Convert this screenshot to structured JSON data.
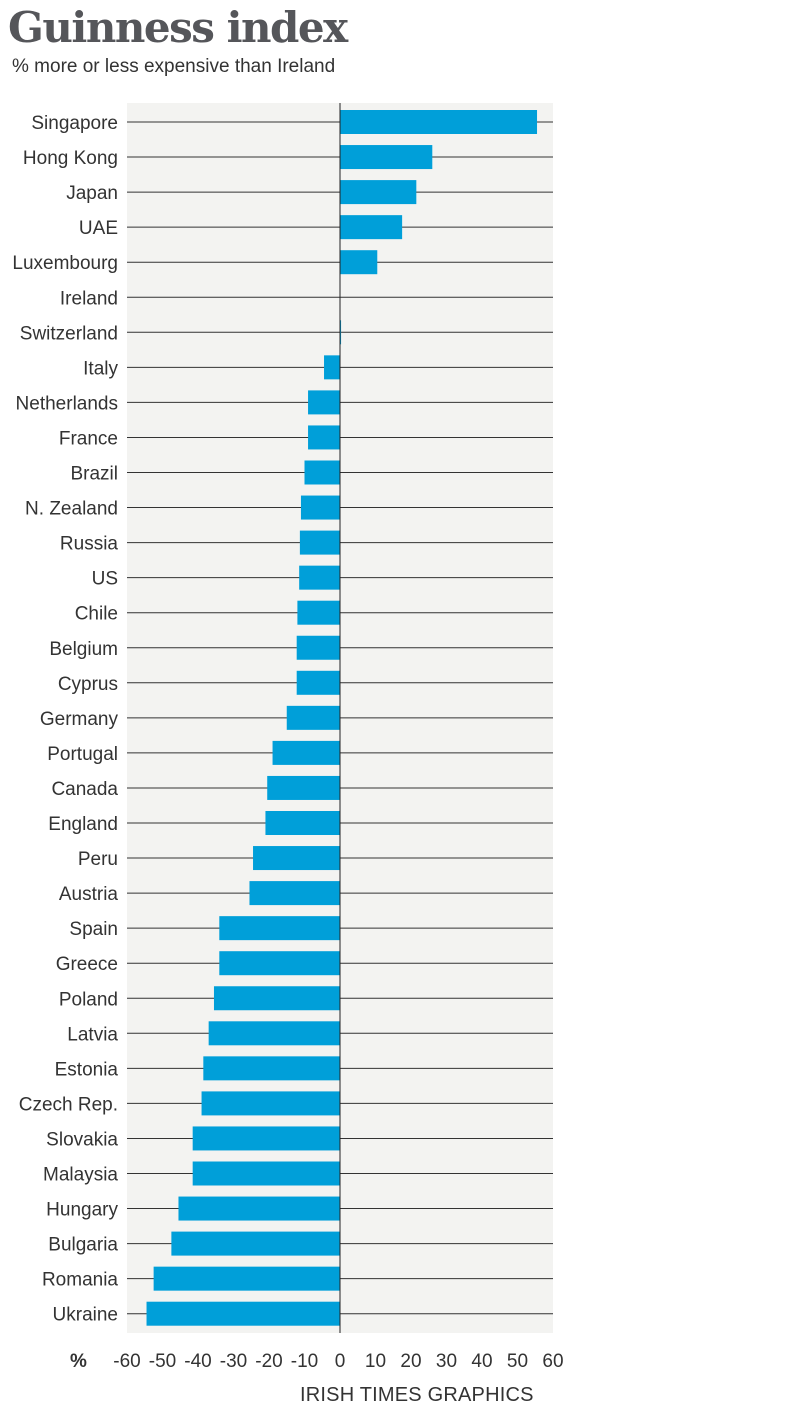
{
  "chart_data": {
    "type": "bar",
    "orientation": "horizontal",
    "title": "Guinness index",
    "subtitle": "% more or less expensive than Ireland",
    "xlabel": "%",
    "ylabel": "",
    "xlim": [
      -60,
      60
    ],
    "xticks": [
      -60,
      -50,
      -40,
      -30,
      -20,
      -10,
      0,
      10,
      20,
      30,
      40,
      50,
      60
    ],
    "grid": true,
    "legend": "none",
    "bar_color": "#009fd9",
    "categories": [
      "Singapore",
      "Hong Kong",
      "Japan",
      "UAE",
      "Luxembourg",
      "Ireland",
      "Switzerland",
      "Italy",
      "Netherlands",
      "France",
      "Brazil",
      "N. Zealand",
      "Russia",
      "US",
      "Chile",
      "Belgium",
      "Cyprus",
      "Germany",
      "Portugal",
      "Canada",
      "England",
      "Peru",
      "Austria",
      "Spain",
      "Greece",
      "Poland",
      "Latvia",
      "Estonia",
      "Czech Rep.",
      "Slovakia",
      "Malaysia",
      "Hungary",
      "Bulgaria",
      "Romania",
      "Ukraine"
    ],
    "values": [
      55.5,
      26,
      21.5,
      17.5,
      10.5,
      0,
      0.3,
      -4.5,
      -9,
      -9,
      -10,
      -11,
      -11.3,
      -11.5,
      -12,
      -12.2,
      -12.2,
      -15,
      -19,
      -20.5,
      -21,
      -24.5,
      -25.5,
      -34,
      -34,
      -35.5,
      -37,
      -38.5,
      -39,
      -41.5,
      -41.5,
      -45.5,
      -47.5,
      -52.5,
      -54.5
    ]
  },
  "credit": "IRISH TIMES GRAPHICS"
}
